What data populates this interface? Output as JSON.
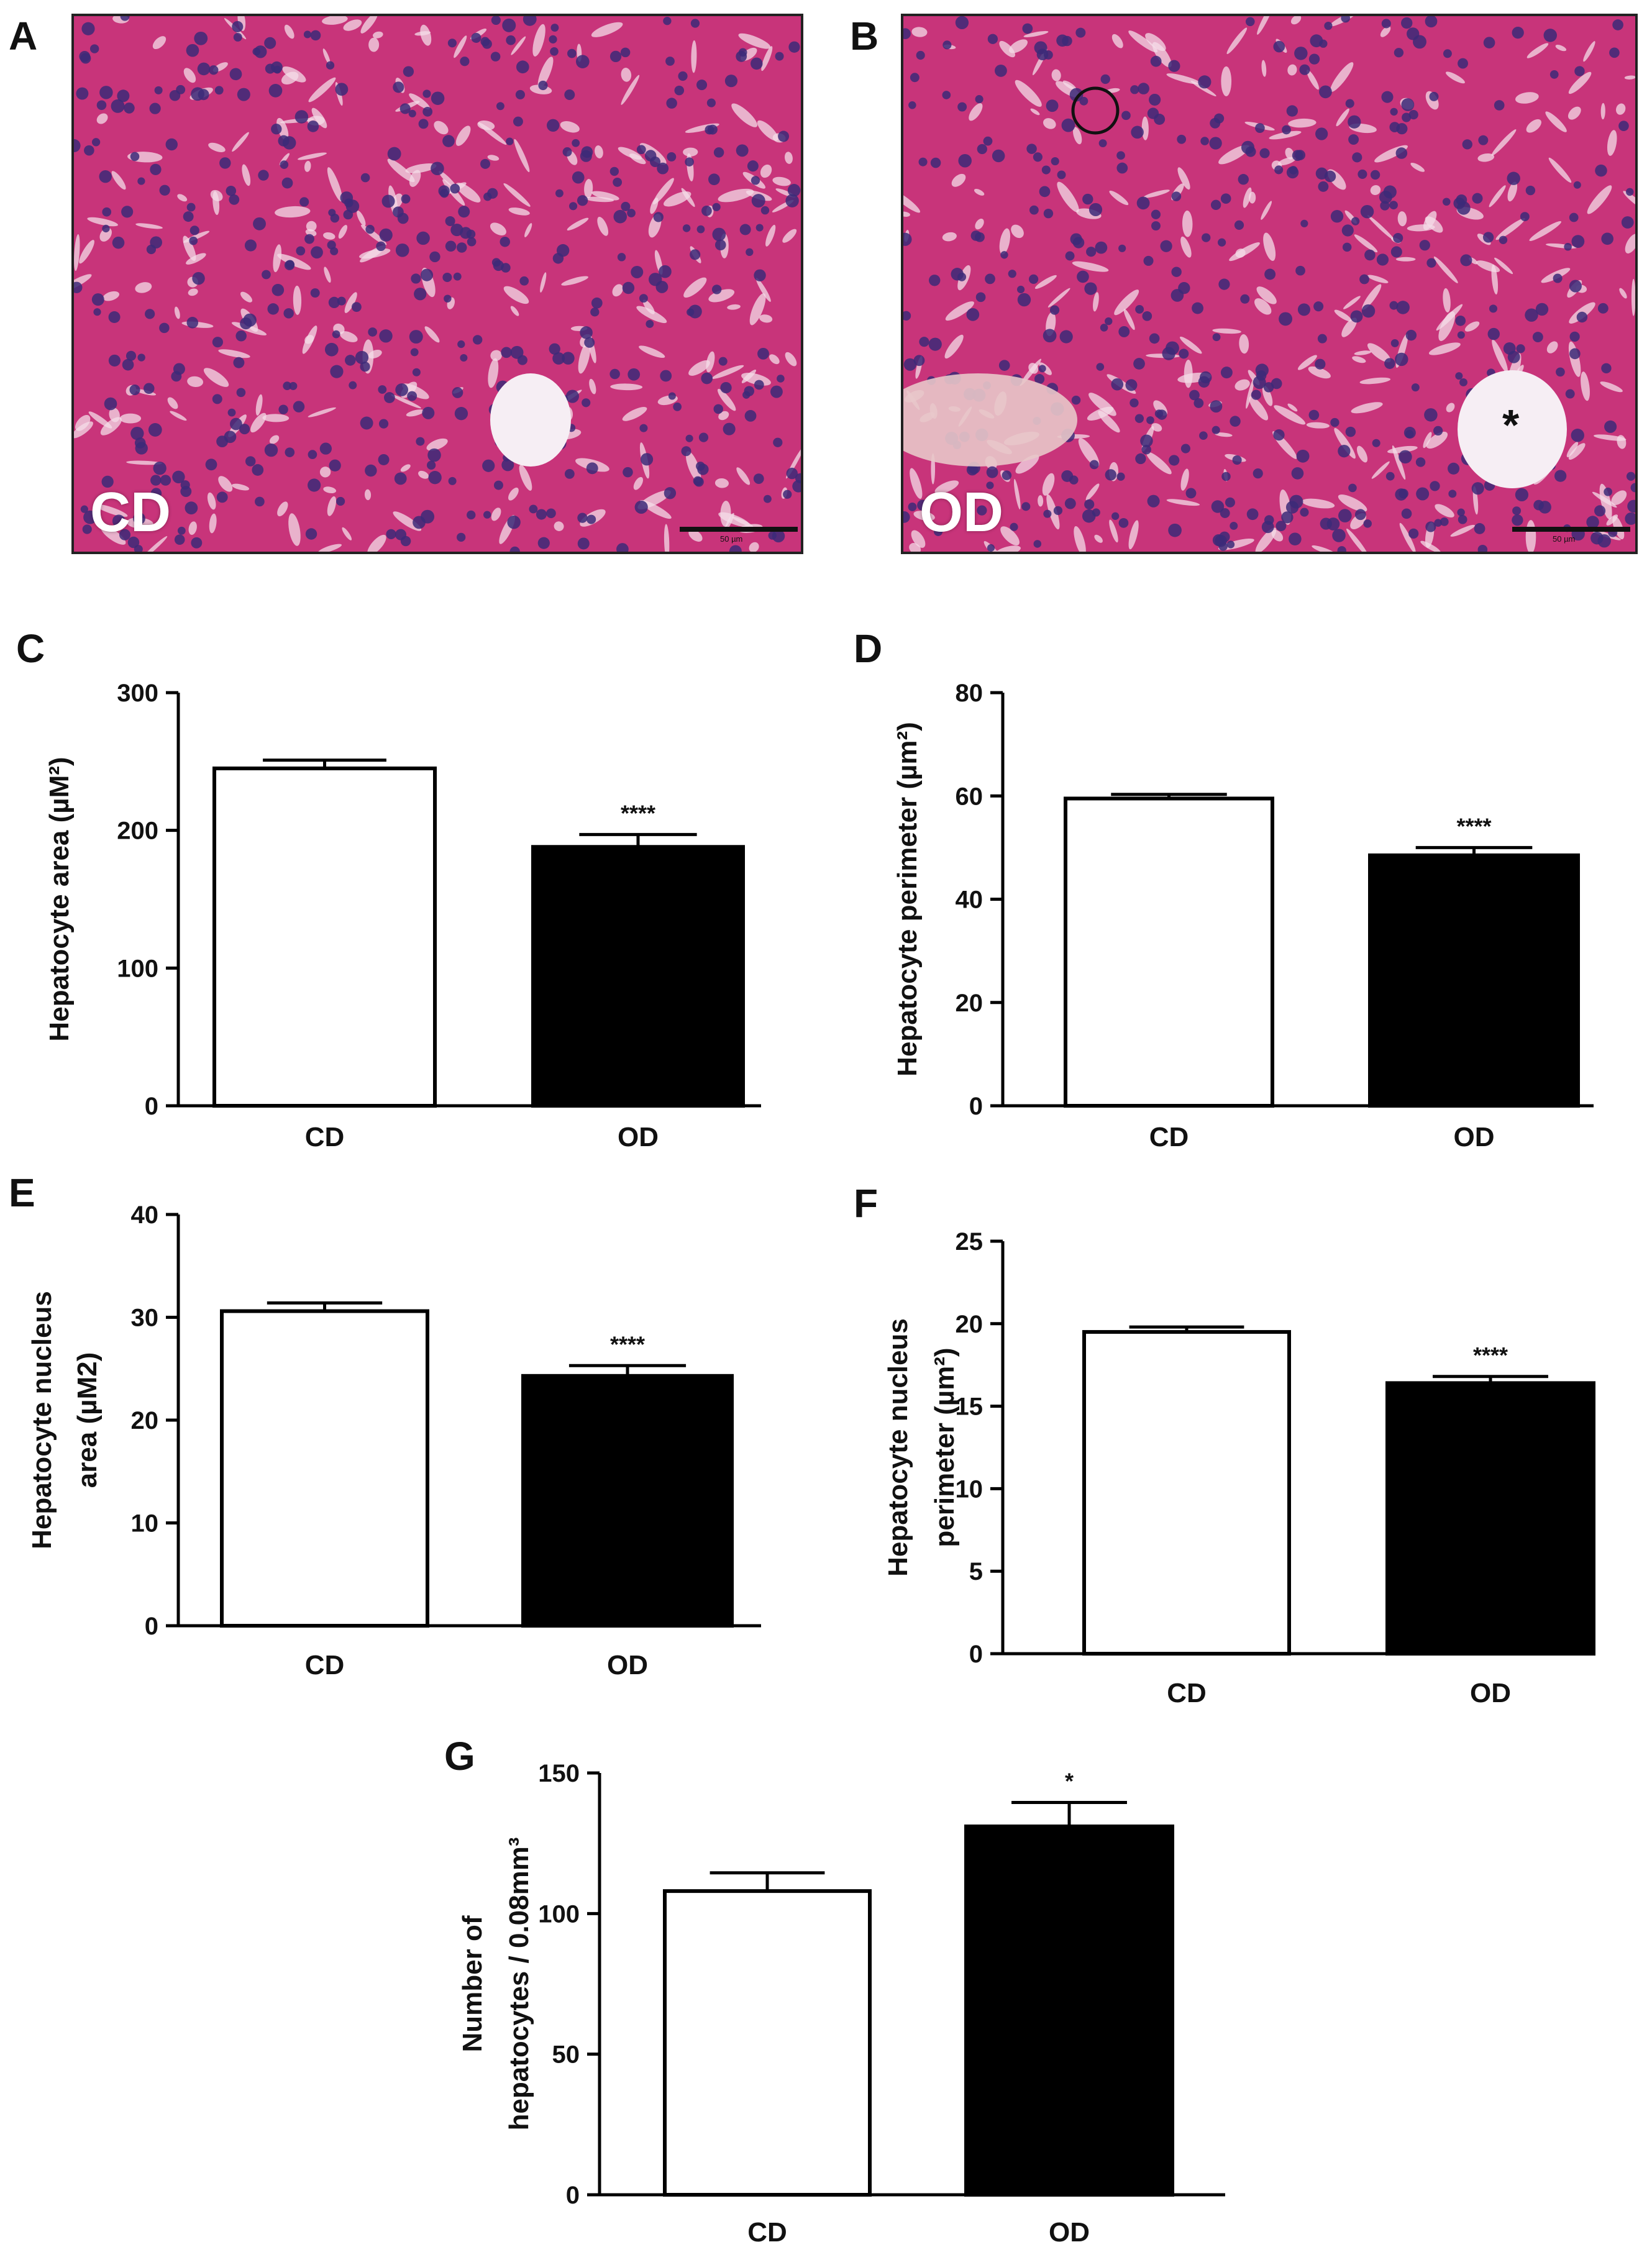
{
  "micrographs": [
    {
      "panel": "A",
      "label": "CD",
      "scale_text": "50 µm",
      "tissue_color": "#c8347a",
      "nucleus_color": "#3c2a78"
    },
    {
      "panel": "B",
      "label": "OD",
      "scale_text": "50 µm",
      "marker": "*",
      "tissue_color": "#c8347a",
      "nucleus_color": "#3c2a78"
    }
  ],
  "chart_data": [
    {
      "panel": "C",
      "type": "bar",
      "categories": [
        "CD",
        "OD"
      ],
      "values": [
        245,
        188
      ],
      "errors": [
        6,
        9
      ],
      "ylabel": "Hepatocyte area (µM²)",
      "ylim": [
        0,
        300
      ],
      "yticks": [
        0,
        100,
        200,
        300
      ],
      "significance": [
        "",
        "****"
      ],
      "fills": [
        "#ffffff",
        "#000000"
      ]
    },
    {
      "panel": "D",
      "type": "bar",
      "categories": [
        "CD",
        "OD"
      ],
      "values": [
        59.5,
        48.5
      ],
      "errors": [
        0.8,
        1.5
      ],
      "ylabel": "Hepatocyte perimeter (µm²)",
      "ylim": [
        0,
        80
      ],
      "yticks": [
        0,
        20,
        40,
        60,
        80
      ],
      "significance": [
        "",
        "****"
      ],
      "fills": [
        "#ffffff",
        "#000000"
      ]
    },
    {
      "panel": "E",
      "type": "bar",
      "categories": [
        "CD",
        "OD"
      ],
      "values": [
        30.6,
        24.3
      ],
      "errors": [
        0.8,
        1.0
      ],
      "ylabel": [
        "Hepatocyte nucleus",
        "area (µM2)"
      ],
      "ylim": [
        0,
        40
      ],
      "yticks": [
        0,
        10,
        20,
        30,
        40
      ],
      "significance": [
        "",
        "****"
      ],
      "fills": [
        "#ffffff",
        "#000000"
      ]
    },
    {
      "panel": "F",
      "type": "bar",
      "categories": [
        "CD",
        "OD"
      ],
      "values": [
        19.5,
        16.4
      ],
      "errors": [
        0.3,
        0.4
      ],
      "ylabel": [
        "Hepatocyte nucleus",
        "perimeter (µm²)"
      ],
      "ylim": [
        0,
        25
      ],
      "yticks": [
        0,
        5,
        10,
        15,
        20,
        25
      ],
      "significance": [
        "",
        "****"
      ],
      "fills": [
        "#ffffff",
        "#000000"
      ]
    },
    {
      "panel": "G",
      "type": "bar",
      "categories": [
        "CD",
        "OD"
      ],
      "values": [
        108,
        131
      ],
      "errors": [
        6.5,
        8.5
      ],
      "ylabel": [
        "Number of",
        "hepatocytes / 0.08mm³"
      ],
      "ylim": [
        0,
        150
      ],
      "yticks": [
        0,
        50,
        100,
        150
      ],
      "significance": [
        "",
        "*"
      ],
      "fills": [
        "#ffffff",
        "#000000"
      ]
    }
  ]
}
